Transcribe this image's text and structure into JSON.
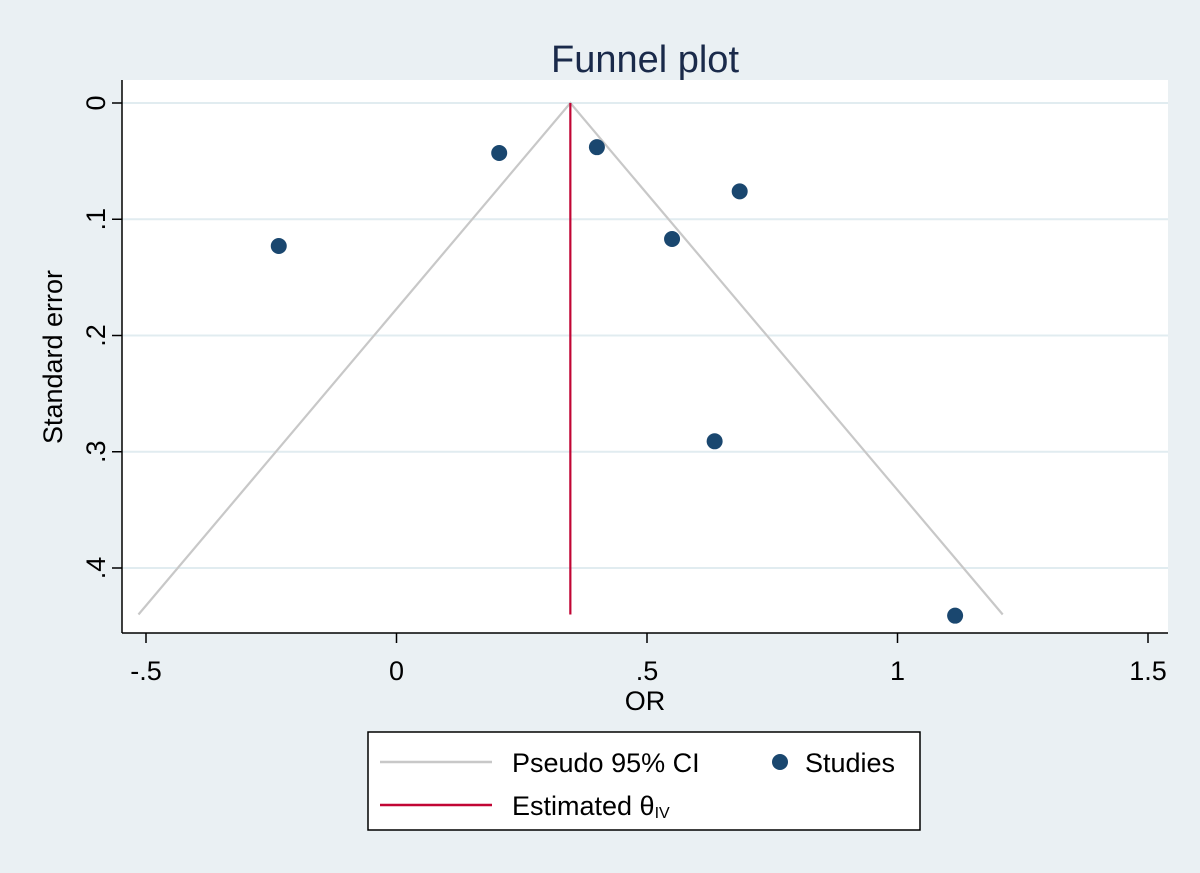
{
  "chart_data": {
    "type": "scatter",
    "title": "Funnel plot",
    "xlabel": "OR",
    "ylabel": "Standard error",
    "xlim": [
      -0.55,
      1.5
    ],
    "ylim": [
      0.0,
      0.455
    ],
    "y_reversed": true,
    "xticks": [
      -0.5,
      0,
      0.5,
      1,
      1.5
    ],
    "xtick_labels": [
      "-.5",
      "0",
      ".5",
      "1",
      "1.5"
    ],
    "yticks": [
      0,
      0.1,
      0.2,
      0.3,
      0.4
    ],
    "ytick_labels": [
      "0",
      ".1",
      ".2",
      ".3",
      ".4"
    ],
    "grid": true,
    "estimate": 0.347,
    "funnel": {
      "apex": [
        0.347,
        0.0
      ],
      "left_base": [
        -0.515,
        0.44
      ],
      "right_base": [
        1.21,
        0.44
      ]
    },
    "series": [
      {
        "name": "Studies",
        "x": [
          -0.235,
          0.205,
          0.4,
          0.55,
          0.635,
          0.685,
          1.115
        ],
        "y": [
          0.123,
          0.043,
          0.038,
          0.117,
          0.291,
          0.076,
          0.441
        ]
      }
    ],
    "legend": {
      "position": "bottom",
      "entries": [
        {
          "label": "Pseudo 95% CI",
          "kind": "line",
          "color": "#c8c8c8"
        },
        {
          "label": "Studies",
          "kind": "marker",
          "color": "#1a476f"
        },
        {
          "label": "Estimated θ",
          "subscript": "IV",
          "kind": "line",
          "color": "#c10534"
        }
      ]
    },
    "colors": {
      "background": "#eaf0f3",
      "plot_background": "#ffffff",
      "grid": "#e1ecf0",
      "funnel": "#c8c8c8",
      "estimate": "#c10534",
      "points": "#1a476f",
      "title": "#1a2a4a"
    }
  }
}
